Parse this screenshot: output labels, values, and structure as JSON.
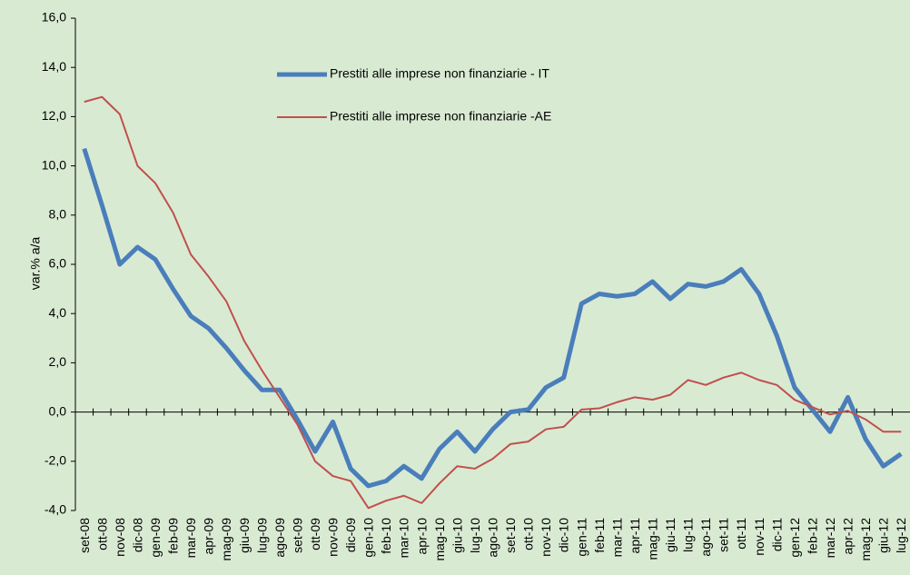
{
  "chart_data": {
    "type": "line",
    "y_label": "var.% a/a",
    "categories": [
      "set-08",
      "ott-08",
      "nov-08",
      "dic-08",
      "gen-09",
      "feb-09",
      "mar-09",
      "apr-09",
      "mag-09",
      "giu-09",
      "lug-09",
      "ago-09",
      "set-09",
      "ott-09",
      "nov-09",
      "dic-09",
      "gen-10",
      "feb-10",
      "mar-10",
      "apr-10",
      "mag-10",
      "giu-10",
      "lug-10",
      "ago-10",
      "set-10",
      "ott-10",
      "nov-10",
      "dic-10",
      "gen-11",
      "feb-11",
      "mar-11",
      "apr-11",
      "mag-11",
      "giu-11",
      "lug-11",
      "ago-11",
      "set-11",
      "ott-11",
      "nov-11",
      "dic-11",
      "gen-12",
      "feb-12",
      "mar-12",
      "apr-12",
      "mag-12",
      "giu-12",
      "lug-12"
    ],
    "series": [
      {
        "name": "Prestiti alle imprese non finanziarie - IT",
        "color": "#4a7ebb",
        "width": 5,
        "values": [
          10.7,
          8.4,
          6.0,
          6.7,
          6.2,
          5.0,
          3.9,
          3.4,
          2.6,
          1.7,
          0.9,
          0.9,
          -0.3,
          -1.6,
          -0.4,
          -2.3,
          -3.0,
          -2.8,
          -2.2,
          -2.7,
          -1.5,
          -0.8,
          -1.6,
          -0.7,
          0.0,
          0.1,
          1.0,
          1.4,
          4.4,
          4.8,
          4.7,
          4.8,
          5.3,
          4.6,
          5.2,
          5.1,
          5.3,
          5.8,
          4.8,
          3.1,
          1.0,
          0.1,
          -0.8,
          0.6,
          -1.1,
          -2.2,
          -1.7
        ]
      },
      {
        "name": "Prestiti alle imprese non finanziarie -AE",
        "color": "#c0504d",
        "width": 2,
        "values": [
          12.6,
          12.8,
          12.1,
          10.0,
          9.3,
          8.1,
          6.4,
          5.5,
          4.5,
          2.9,
          1.7,
          0.6,
          -0.5,
          -2.0,
          -2.6,
          -2.8,
          -3.9,
          -3.6,
          -3.4,
          -3.7,
          -2.9,
          -2.2,
          -2.3,
          -1.9,
          -1.3,
          -1.2,
          -0.7,
          -0.6,
          0.1,
          0.15,
          0.4,
          0.6,
          0.5,
          0.7,
          1.3,
          1.1,
          1.4,
          1.6,
          1.3,
          1.1,
          0.5,
          0.2,
          -0.1,
          0.05,
          -0.3,
          -0.8,
          -0.8
        ]
      }
    ],
    "ylim": [
      -4,
      16
    ],
    "yticks": [
      {
        "value": -4,
        "label": "-4,0"
      },
      {
        "value": -2,
        "label": "-2,0"
      },
      {
        "value": 0,
        "label": "0,0"
      },
      {
        "value": 2,
        "label": "2,0"
      },
      {
        "value": 4,
        "label": "4,0"
      },
      {
        "value": 6,
        "label": "6,0"
      },
      {
        "value": 8,
        "label": "8,0"
      },
      {
        "value": 10,
        "label": "10,0"
      },
      {
        "value": 12,
        "label": "12,0"
      },
      {
        "value": 14,
        "label": "14,0"
      },
      {
        "value": 16,
        "label": "16,0"
      }
    ],
    "grid": false,
    "legend": "upper center"
  }
}
